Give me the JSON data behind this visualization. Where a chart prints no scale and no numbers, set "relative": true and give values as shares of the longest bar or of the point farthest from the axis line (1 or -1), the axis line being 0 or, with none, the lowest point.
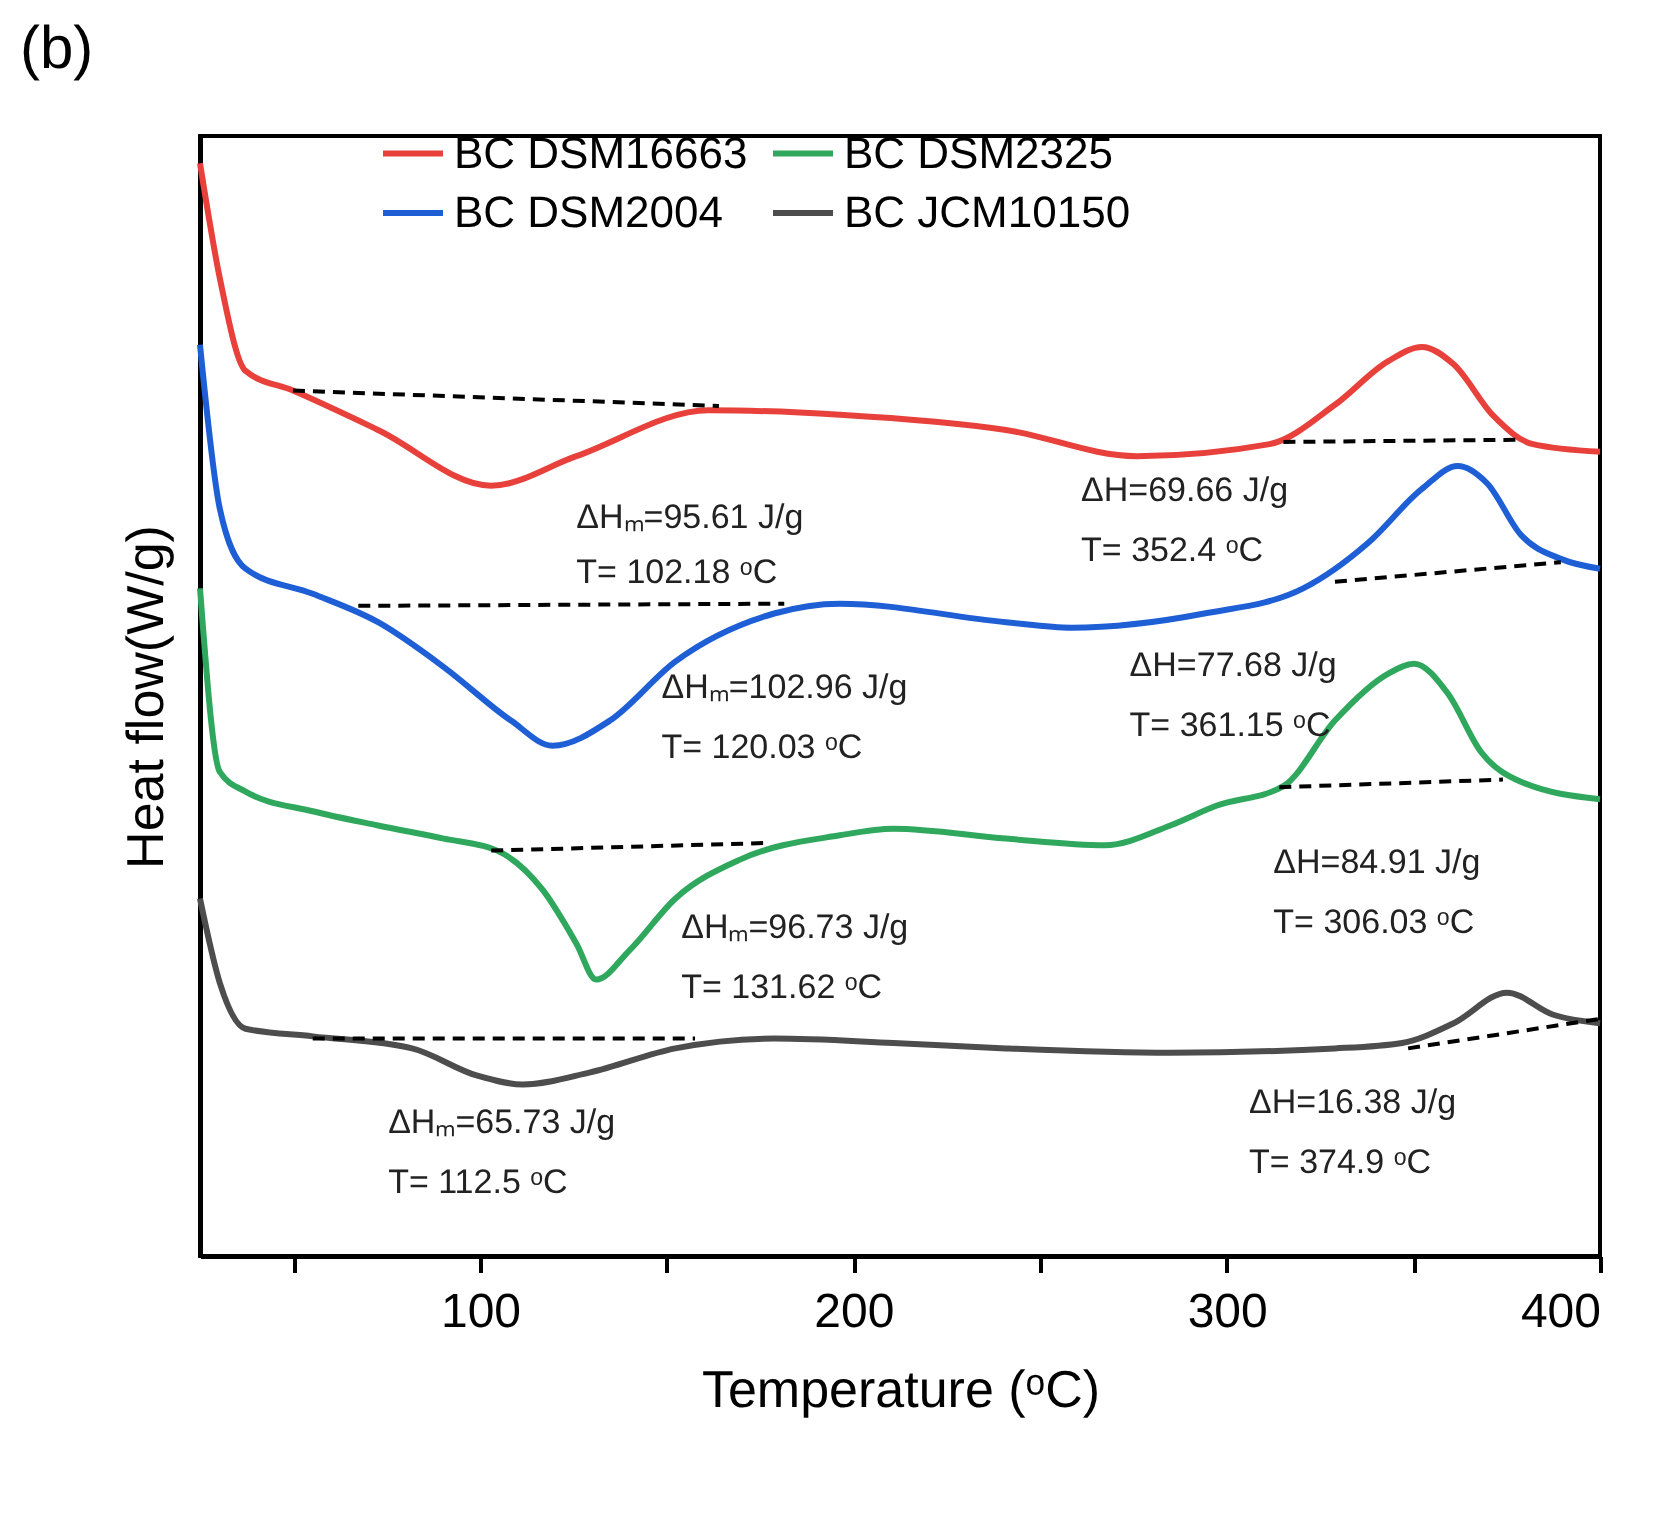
{
  "chart_data": {
    "type": "line",
    "title": "(b)",
    "xlabel": "Temperature (ᵒC)",
    "ylabel": "Heat flow(W/g)",
    "relative": true,
    "legend": "top",
    "xlim": [
      25,
      400
    ],
    "xticks": [
      {
        "value": 50,
        "label": null
      },
      100,
      {
        "value": 150,
        "label": null
      },
      200,
      {
        "value": 250,
        "label": null
      },
      300,
      {
        "value": 350,
        "label": null
      },
      400
    ],
    "series": [
      {
        "name": "BC DSM16663",
        "color": "#e8413c",
        "x": [
          25,
          30.3,
          37.2,
          49.9,
          72.7,
          103,
          125.8,
          161.3,
          196.4,
          240.9,
          275.9,
          311.5,
          329,
          343.3,
          352.3,
          360.8,
          371.4,
          382,
          400
        ],
        "values": [
          1.0,
          0.895,
          0.81,
          0.792,
          0.756,
          0.705,
          0.732,
          0.774,
          0.77,
          0.756,
          0.732,
          0.743,
          0.779,
          0.819,
          0.832,
          0.816,
          0.769,
          0.743,
          0.736
        ]
      },
      {
        "name": "BC DSM2004",
        "color": "#1f5fd6",
        "x": [
          25,
          30.3,
          37.2,
          55.2,
          72.7,
          90.3,
          108.3,
          119.4,
          134.8,
          152.3,
          178.8,
          196.4,
          240.9,
          258.4,
          294,
          320.5,
          338,
          352.3,
          361.9,
          369.8,
          378.8,
          389.5,
          400
        ],
        "values": [
          0.834,
          0.684,
          0.629,
          0.606,
          0.58,
          0.539,
          0.49,
          0.467,
          0.49,
          0.544,
          0.588,
          0.597,
          0.58,
          0.575,
          0.588,
          0.611,
          0.653,
          0.702,
          0.723,
          0.707,
          0.66,
          0.638,
          0.629
        ]
      },
      {
        "name": "BC DSM2325",
        "color": "#2fa85e",
        "x": [
          25,
          30.3,
          37.2,
          55.2,
          72.7,
          90.3,
          104.6,
          116.8,
          125.8,
          131.1,
          140.1,
          152.3,
          169.8,
          196.4,
          210.7,
          240.9,
          267.4,
          284.9,
          297.2,
          315.2,
          329,
          343.3,
          350.2,
          359.2,
          368.2,
          378.8,
          400
        ],
        "values": [
          0.611,
          0.443,
          0.425,
          0.407,
          0.394,
          0.382,
          0.371,
          0.335,
          0.286,
          0.253,
          0.28,
          0.327,
          0.363,
          0.385,
          0.391,
          0.382,
          0.376,
          0.394,
          0.412,
          0.43,
          0.49,
          0.533,
          0.542,
          0.515,
          0.461,
          0.434,
          0.418
        ]
      },
      {
        "name": "BC JCM10150",
        "color": "#4d4d4d",
        "x": [
          25,
          30.3,
          37.2,
          55.2,
          81.8,
          99.3,
          111.5,
          129.5,
          152.3,
          178.8,
          210.7,
          240.9,
          284.9,
          329,
          347,
          360.8,
          375.1,
          387.3,
          400
        ],
        "values": [
          0.327,
          0.25,
          0.208,
          0.201,
          0.19,
          0.165,
          0.157,
          0.168,
          0.19,
          0.199,
          0.195,
          0.19,
          0.186,
          0.19,
          0.195,
          0.213,
          0.241,
          0.221,
          0.213
        ]
      },
      {
        "type": "line",
        "line_style": "dashed",
        "color": "#000000",
        "x": [
          49.9,
          164
        ],
        "values": [
          0.792,
          0.778
        ]
      },
      {
        "type": "line",
        "line_style": "dashed",
        "color": "#000000",
        "x": [
          315.2,
          378.8
        ],
        "values": [
          0.745,
          0.747
        ]
      },
      {
        "type": "line",
        "line_style": "dashed",
        "color": "#000000",
        "x": [
          67.4,
          181.5
        ],
        "values": [
          0.595,
          0.597
        ]
      },
      {
        "type": "line",
        "line_style": "dashed",
        "color": "#000000",
        "x": [
          329,
          389.5
        ],
        "values": [
          0.617,
          0.635
        ]
      },
      {
        "type": "line",
        "line_style": "dashed",
        "color": "#000000",
        "x": [
          103,
          177.3
        ],
        "values": [
          0.371,
          0.378
        ]
      },
      {
        "type": "line",
        "line_style": "dashed",
        "color": "#000000",
        "x": [
          314.1,
          374
        ],
        "values": [
          0.429,
          0.436
        ]
      },
      {
        "type": "line",
        "line_style": "dashed",
        "color": "#000000",
        "x": [
          55.2,
          157.6
        ],
        "values": [
          0.199,
          0.199
        ]
      },
      {
        "type": "line",
        "line_style": "dashed",
        "color": "#000000",
        "x": [
          348.6,
          400
        ],
        "values": [
          0.19,
          0.217
        ]
      }
    ],
    "annotations": [
      "ΔHₘ=95.61 J/g",
      "T= 102.18 ᵒC",
      "ΔH=69.66 J/g",
      "T= 352.4 ᵒC",
      "ΔHₘ=102.96 J/g",
      "T= 120.03 ᵒC",
      "ΔH=77.68 J/g",
      "T= 361.15 ᵒC",
      "ΔHₘ=96.73 J/g",
      "T= 131.62 ᵒC",
      "ΔH=84.91 J/g",
      "T= 306.03 ᵒC",
      "ΔHₘ=65.73 J/g",
      "T= 112.5 ᵒC",
      "ΔH=16.38 J/g",
      "T= 374.9 ᵒC"
    ]
  }
}
